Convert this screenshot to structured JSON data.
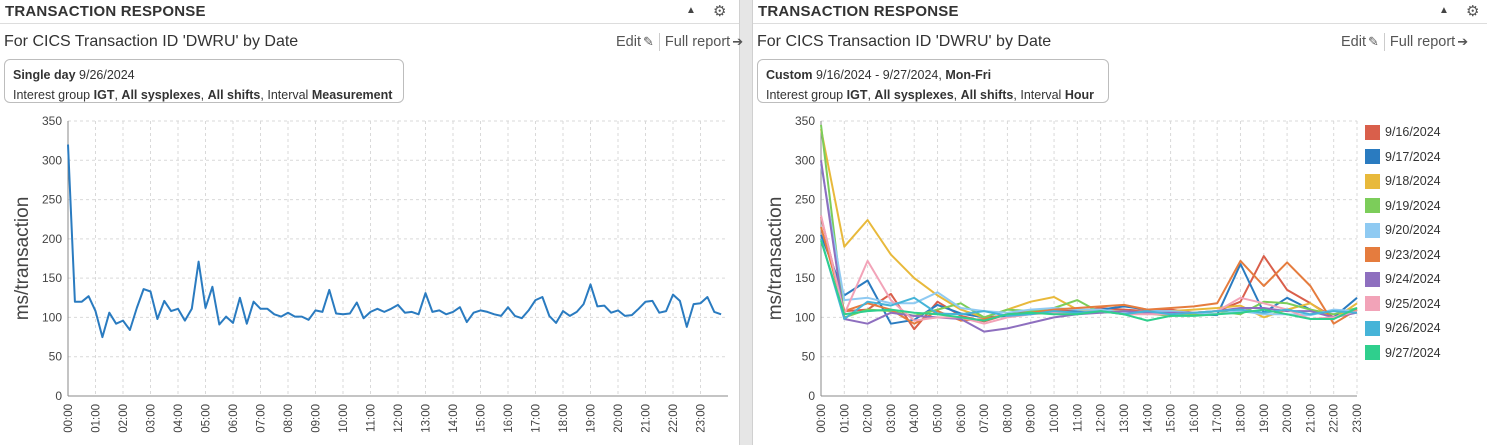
{
  "panels": [
    {
      "header": {
        "title": "TRANSACTION RESPONSE",
        "collapse_icon": "triangle-up-icon",
        "settings_icon": "gear-icon"
      },
      "subtitle": "For CICS Transaction ID 'DWRU' by Date",
      "actions": {
        "edit_label": "Edit",
        "edit_icon": "edit-icon",
        "report_label": "Full report",
        "report_icon": "arrow-right-circle-icon"
      },
      "info": {
        "range_bold": "Single day",
        "range_text": "9/26/2024",
        "range_suffix": "",
        "line2": {
          "prefix": "Interest group",
          "group": "IGT",
          "sysplex": "All sysplexes",
          "shifts": "All shifts",
          "interval_label": "Interval",
          "interval": "Measurement"
        }
      }
    },
    {
      "header": {
        "title": "TRANSACTION RESPONSE",
        "collapse_icon": "triangle-up-icon",
        "settings_icon": "gear-icon"
      },
      "subtitle": "For CICS Transaction ID 'DWRU' by Date",
      "actions": {
        "edit_label": "Edit",
        "edit_icon": "edit-icon",
        "report_label": "Full report",
        "report_icon": "arrow-right-circle-icon"
      },
      "info": {
        "range_bold": "Custom",
        "range_text": "9/16/2024 - 9/27/2024,",
        "range_suffix": "Mon-Fri",
        "line2": {
          "prefix": "Interest group",
          "group": "IGT",
          "sysplex": "All sysplexes",
          "shifts": "All shifts",
          "interval_label": "Interval",
          "interval": "Hour"
        }
      }
    }
  ],
  "chart_data": [
    {
      "type": "line",
      "ylabel": "ms/transaction",
      "xlabel": "",
      "ylim": [
        0,
        350
      ],
      "yticks": [
        0,
        50,
        100,
        150,
        200,
        250,
        300,
        350
      ],
      "x_ticks": [
        "00:00",
        "01:00",
        "02:00",
        "03:00",
        "04:00",
        "05:00",
        "06:00",
        "07:00",
        "08:00",
        "09:00",
        "10:00",
        "11:00",
        "12:00",
        "13:00",
        "14:00",
        "15:00",
        "16:00",
        "17:00",
        "18:00",
        "19:00",
        "20:00",
        "21:00",
        "22:00",
        "23:00"
      ],
      "x_range_hours": [
        0,
        24
      ],
      "grid": true,
      "series": [
        {
          "color": "#2a7bc0",
          "x_hours": [
            0,
            0.25,
            0.5,
            0.75,
            1,
            1.25,
            1.5,
            1.75,
            2,
            2.25,
            2.5,
            2.75,
            3,
            3.25,
            3.5,
            3.75,
            4,
            4.25,
            4.5,
            4.75,
            5,
            5.25,
            5.5,
            5.75,
            6,
            6.25,
            6.5,
            6.75,
            7,
            7.25,
            7.5,
            7.75,
            8,
            8.25,
            8.5,
            8.75,
            9,
            9.25,
            9.5,
            9.75,
            10,
            10.25,
            10.5,
            10.75,
            11,
            11.25,
            11.5,
            11.75,
            12,
            12.25,
            12.5,
            12.75,
            13,
            13.25,
            13.5,
            13.75,
            14,
            14.25,
            14.5,
            14.75,
            15,
            15.25,
            15.5,
            15.75,
            16,
            16.25,
            16.5,
            16.75,
            17,
            17.25,
            17.5,
            17.75,
            18,
            18.25,
            18.5,
            18.75,
            19,
            19.25,
            19.5,
            19.75,
            20,
            20.25,
            20.5,
            20.75,
            21,
            21.25,
            21.5,
            21.75,
            22,
            22.25,
            22.5,
            22.75,
            23,
            23.25,
            23.5,
            23.75
          ],
          "values": [
            320,
            120,
            120,
            127,
            108,
            75,
            106,
            92,
            96,
            84,
            112,
            136,
            133,
            98,
            121,
            108,
            111,
            96,
            111,
            171,
            112,
            139,
            91,
            101,
            93,
            125,
            92,
            120,
            111,
            111,
            104,
            101,
            106,
            101,
            101,
            97,
            109,
            107,
            135,
            105,
            104,
            105,
            119,
            99,
            107,
            111,
            107,
            111,
            116,
            106,
            107,
            104,
            131,
            107,
            109,
            104,
            107,
            113,
            94,
            106,
            109,
            107,
            104,
            102,
            113,
            102,
            99,
            109,
            122,
            126,
            102,
            93,
            108,
            102,
            107,
            117,
            142,
            114,
            115,
            106,
            109,
            102,
            103,
            111,
            120,
            121,
            106,
            108,
            129,
            121,
            88,
            117,
            118,
            126,
            107,
            104
          ]
        }
      ]
    },
    {
      "type": "line",
      "ylabel": "ms/transaction",
      "xlabel": "",
      "ylim": [
        0,
        350
      ],
      "yticks": [
        0,
        50,
        100,
        150,
        200,
        250,
        300,
        350
      ],
      "x_ticks": [
        "00:00",
        "01:00",
        "02:00",
        "03:00",
        "04:00",
        "05:00",
        "06:00",
        "07:00",
        "08:00",
        "09:00",
        "10:00",
        "11:00",
        "12:00",
        "13:00",
        "14:00",
        "15:00",
        "16:00",
        "17:00",
        "18:00",
        "19:00",
        "20:00",
        "21:00",
        "22:00",
        "23:00"
      ],
      "x_range_hours": [
        0,
        23
      ],
      "grid": true,
      "legend_position": "right",
      "series": [
        {
          "name": "9/16/2024",
          "color": "#d95f4b",
          "values": [
            228,
            108,
            110,
            130,
            85,
            120,
            102,
            95,
            104,
            108,
            110,
            108,
            112,
            110,
            108,
            110,
            106,
            108,
            120,
            178,
            135,
            118,
            100,
            110
          ]
        },
        {
          "name": "9/17/2024",
          "color": "#2a7bc0",
          "values": [
            205,
            128,
            147,
            92,
            97,
            116,
            105,
            100,
            102,
            105,
            106,
            108,
            110,
            114,
            110,
            106,
            104,
            103,
            168,
            106,
            125,
            110,
            100,
            125
          ]
        },
        {
          "name": "9/18/2024",
          "color": "#e8b93b",
          "values": [
            340,
            190,
            224,
            180,
            150,
            128,
            110,
            100,
            110,
            120,
            126,
            110,
            108,
            108,
            106,
            108,
            110,
            112,
            115,
            100,
            110,
            118,
            98,
            118
          ]
        },
        {
          "name": "9/19/2024",
          "color": "#7ccd5a",
          "values": [
            345,
            100,
            110,
            108,
            102,
            110,
            118,
            100,
            110,
            108,
            112,
            122,
            106,
            108,
            105,
            102,
            104,
            108,
            104,
            120,
            118,
            110,
            104,
            112
          ]
        },
        {
          "name": "9/20/2024",
          "color": "#8fcaf2",
          "values": [
            295,
            122,
            125,
            118,
            118,
            132,
            112,
            108,
            106,
            110,
            112,
            110,
            110,
            106,
            108,
            108,
            106,
            104,
            108,
            104,
            104,
            103,
            110,
            108
          ]
        },
        {
          "name": "9/23/2024",
          "color": "#e57c3e",
          "values": [
            215,
            108,
            118,
            110,
            92,
            108,
            96,
            98,
            104,
            106,
            110,
            112,
            114,
            116,
            110,
            112,
            114,
            118,
            172,
            140,
            170,
            140,
            92,
            110
          ]
        },
        {
          "name": "9/24/2024",
          "color": "#8e6fbf",
          "values": [
            300,
            98,
            92,
            106,
            102,
            100,
            98,
            82,
            86,
            93,
            100,
            104,
            106,
            108,
            106,
            106,
            106,
            108,
            112,
            112,
            108,
            108,
            100,
            106
          ]
        },
        {
          "name": "9/25/2024",
          "color": "#f2a3b8",
          "values": [
            230,
            104,
            172,
            122,
            96,
            100,
            100,
            92,
            100,
            104,
            106,
            106,
            108,
            104,
            104,
            104,
            106,
            108,
            125,
            118,
            110,
            98,
            100,
            108
          ]
        },
        {
          "name": "9/26/2024",
          "color": "#46b4d8",
          "values": [
            200,
            98,
            120,
            115,
            125,
            105,
            104,
            108,
            102,
            104,
            108,
            106,
            108,
            104,
            108,
            104,
            106,
            108,
            110,
            106,
            110,
            104,
            108,
            106
          ]
        },
        {
          "name": "9/27/2024",
          "color": "#2fcf8d",
          "values": [
            198,
            104,
            108,
            110,
            106,
            104,
            100,
            96,
            104,
            106,
            104,
            104,
            108,
            104,
            96,
            102,
            102,
            104,
            106,
            110,
            104,
            98,
            98,
            112
          ]
        }
      ]
    }
  ]
}
